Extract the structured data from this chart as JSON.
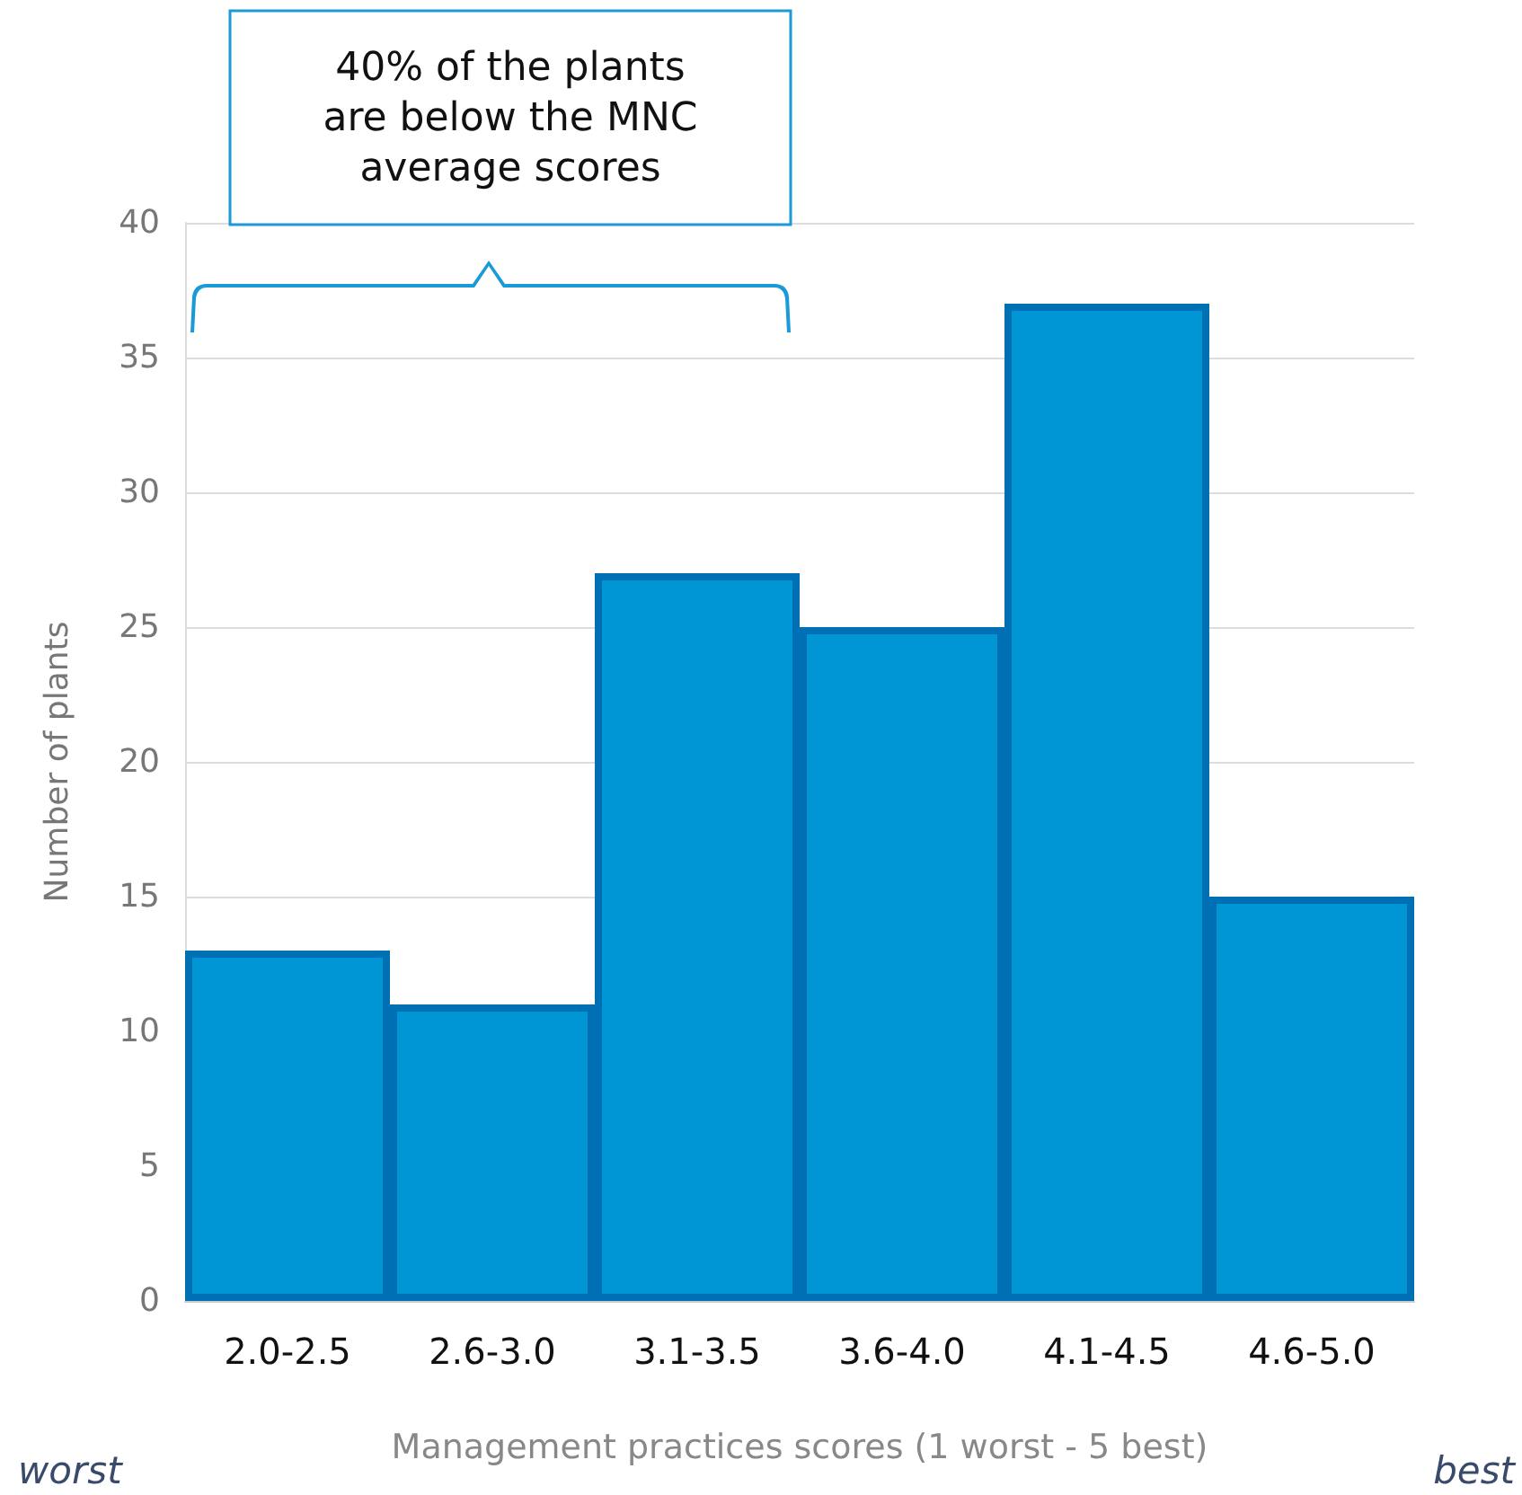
{
  "chart_data": {
    "type": "bar",
    "categories": [
      "2.0-2.5",
      "2.6-3.0",
      "3.1-3.5",
      "3.6-4.0",
      "4.1-4.5",
      "4.6-5.0"
    ],
    "values": [
      13,
      11,
      27,
      25,
      37,
      15
    ],
    "color": "#0096d6",
    "ylim": [
      0,
      40
    ],
    "yticks": [
      0,
      5,
      10,
      15,
      20,
      25,
      30,
      35,
      40
    ],
    "grid": "y",
    "xlabel": "Management practices scores (1 worst - 5 best)",
    "ylabel": "Number of plants",
    "annotations": [
      "40% of the plants\nare below the MNC\naverage scores",
      "worst",
      "best"
    ]
  }
}
